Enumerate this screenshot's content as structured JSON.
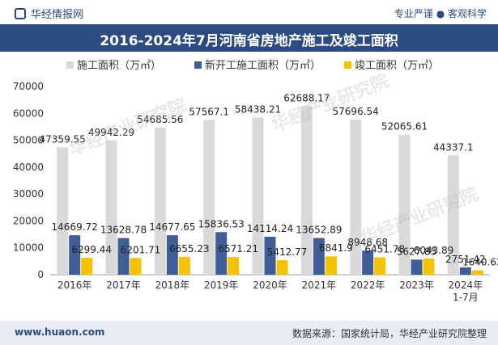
{
  "header": {
    "brand": "华经情报网",
    "slogan": "专业严谨 ● 客观科学"
  },
  "title": "2016-2024年7月河南省房地产施工及竣工面积",
  "footer": {
    "site": "www.huaon.com",
    "source": "数据来源：国家统计局，华经产业研究院整理"
  },
  "watermark": "华经产业研究院",
  "chart_data": {
    "type": "bar",
    "categories": [
      "2016年",
      "2017年",
      "2018年",
      "2019年",
      "2020年",
      "2021年",
      "2022年",
      "2023年",
      "2024年\n1-7月"
    ],
    "series": [
      {
        "name": "施工面积（万㎡）",
        "color": "#d9d9d9",
        "values": [
          47359.55,
          49942.29,
          54685.56,
          57567.1,
          58438.21,
          62688.17,
          57696.54,
          52065.61,
          44337.1
        ],
        "labels": [
          "47359.55",
          "49942.29",
          "54685.56",
          "57567.1",
          "58438.21",
          "62688.17",
          "57696.54",
          "52065.61",
          "44337.1"
        ]
      },
      {
        "name": "新开工施工面积（万㎡）",
        "color": "#3f5d96",
        "values": [
          14669.72,
          13628.78,
          14677.65,
          15836.53,
          14114.24,
          13652.89,
          8948.68,
          5627.85,
          2751.42
        ],
        "labels": [
          "14669.72",
          "13628.78",
          "14677.65",
          "15836.53",
          "14114.24",
          "13652.89",
          "8948.68",
          "5627.85",
          "2751.42"
        ]
      },
      {
        "name": "竣工面积（万㎡）",
        "color": "#f5c200",
        "values": [
          6299.44,
          6201.71,
          6655.23,
          6571.21,
          5412.77,
          6841.9,
          6451.78,
          6043.89,
          1640.62
        ],
        "labels": [
          "6299.44",
          "6201.71",
          "6655.23",
          "6571.21",
          "5412.77",
          "6841.9",
          "6451.78",
          "6043.89",
          "1640.62"
        ]
      }
    ],
    "yticks": [
      "0",
      "10000",
      "20000",
      "30000",
      "40000",
      "50000",
      "60000",
      "70000"
    ],
    "ylim": [
      0,
      70000
    ],
    "legend_position": "top"
  }
}
